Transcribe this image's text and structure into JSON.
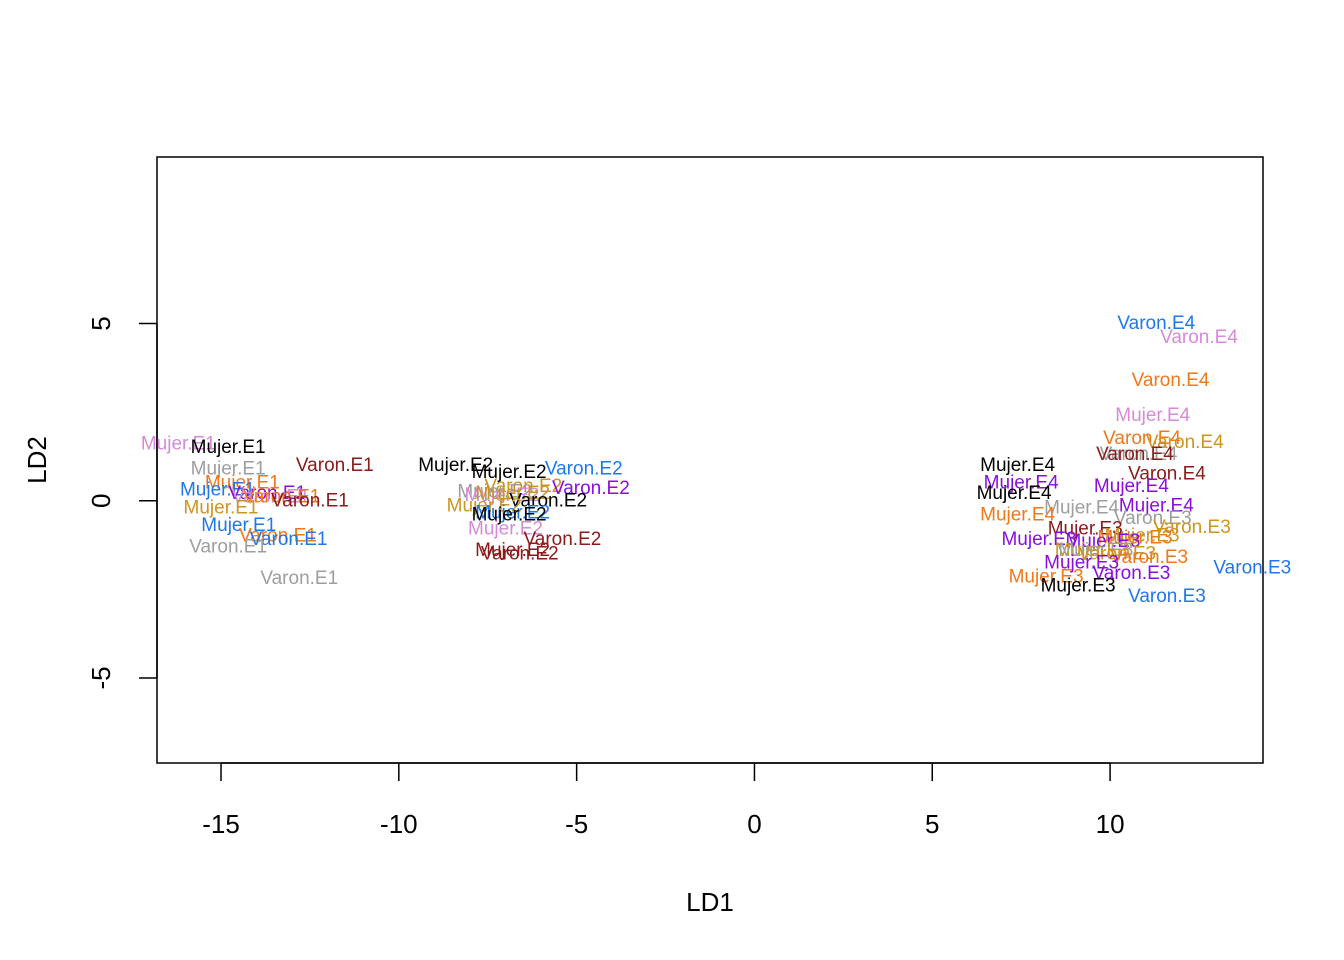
{
  "chart_data": {
    "type": "scatter",
    "title": "",
    "xlabel": "LD1",
    "ylabel": "LD2",
    "xlim": [
      -16.8,
      14.3
    ],
    "ylim": [
      -7.4,
      9.7
    ],
    "xticks": [
      -15,
      -10,
      -5,
      0,
      5,
      10
    ],
    "yticks": [
      -5,
      0,
      5
    ],
    "xtick_labels": [
      "-15",
      "-10",
      "-5",
      "0",
      "5",
      "10"
    ],
    "ytick_labels": [
      "-5",
      "0",
      "5"
    ],
    "grid": false,
    "colors": {
      "black": "#000000",
      "gray": "#9e9e9e",
      "red": "#8b1a1a",
      "blue": "#1f78e8",
      "orange": "#f07818",
      "purple": "#8a0ee0",
      "pink": "#d68ad8",
      "gold": "#cc9520"
    },
    "points": [
      {
        "label": "Mujer.E1",
        "x": -16.2,
        "y": 1.6,
        "color": "pink"
      },
      {
        "label": "Mujer.E1",
        "x": -14.8,
        "y": 1.5,
        "color": "black"
      },
      {
        "label": "Mujer.E1",
        "x": -14.8,
        "y": 0.9,
        "color": "gray"
      },
      {
        "label": "Varon.E1",
        "x": -11.8,
        "y": 1.0,
        "color": "red"
      },
      {
        "label": "Mujer.E1",
        "x": -14.4,
        "y": 0.5,
        "color": "orange"
      },
      {
        "label": "Mujer.E1",
        "x": -15.1,
        "y": 0.3,
        "color": "blue"
      },
      {
        "label": "Varon.E1",
        "x": -13.7,
        "y": 0.2,
        "color": "purple"
      },
      {
        "label": "Varon.E1",
        "x": -13.6,
        "y": 0.1,
        "color": "pink"
      },
      {
        "label": "Varon.E1",
        "x": -13.3,
        "y": 0.1,
        "color": "orange"
      },
      {
        "label": "Varon.E1",
        "x": -12.5,
        "y": 0.0,
        "color": "red"
      },
      {
        "label": "Mujer.E1",
        "x": -15.0,
        "y": -0.2,
        "color": "gold"
      },
      {
        "label": "Mujer.E1",
        "x": -14.5,
        "y": -0.7,
        "color": "blue"
      },
      {
        "label": "Varon.E1",
        "x": -13.4,
        "y": -1.0,
        "color": "orange"
      },
      {
        "label": "Varon.E1",
        "x": -13.1,
        "y": -1.1,
        "color": "blue"
      },
      {
        "label": "Varon.E1",
        "x": -14.8,
        "y": -1.3,
        "color": "gray"
      },
      {
        "label": "Varon.E1",
        "x": -12.8,
        "y": -2.2,
        "color": "gray"
      },
      {
        "label": "Mujer.E2",
        "x": -8.4,
        "y": 1.0,
        "color": "black"
      },
      {
        "label": "Mujer.E2",
        "x": -6.9,
        "y": 0.8,
        "color": "black"
      },
      {
        "label": "Varon.E2",
        "x": -4.8,
        "y": 0.9,
        "color": "blue"
      },
      {
        "label": "Varon.E2",
        "x": -6.5,
        "y": 0.4,
        "color": "gold"
      },
      {
        "label": "Varon.E2",
        "x": -4.6,
        "y": 0.35,
        "color": "purple"
      },
      {
        "label": "Mujer.E2",
        "x": -7.3,
        "y": 0.25,
        "color": "gray"
      },
      {
        "label": "Mujer.E2",
        "x": -7.1,
        "y": 0.15,
        "color": "pink"
      },
      {
        "label": "Mujer.E2",
        "x": -6.8,
        "y": 0.2,
        "color": "gold"
      },
      {
        "label": "Varon.E2",
        "x": -5.8,
        "y": 0.0,
        "color": "black"
      },
      {
        "label": "Mujer.E2",
        "x": -7.6,
        "y": -0.15,
        "color": "gold"
      },
      {
        "label": "Mujer.E2",
        "x": -6.8,
        "y": -0.35,
        "color": "blue"
      },
      {
        "label": "Mujer.E2",
        "x": -6.9,
        "y": -0.4,
        "color": "black"
      },
      {
        "label": "Mujer.E2",
        "x": -7.0,
        "y": -0.8,
        "color": "pink"
      },
      {
        "label": "Varon.E2",
        "x": -5.4,
        "y": -1.1,
        "color": "red"
      },
      {
        "label": "Mujer.E2",
        "x": -6.8,
        "y": -1.4,
        "color": "red"
      },
      {
        "label": "Varon.E2",
        "x": -6.6,
        "y": -1.5,
        "color": "red"
      },
      {
        "label": "Varon.E4",
        "x": 11.3,
        "y": 5.0,
        "color": "blue"
      },
      {
        "label": "Varon.E4",
        "x": 12.5,
        "y": 4.6,
        "color": "pink"
      },
      {
        "label": "Varon.E4",
        "x": 11.7,
        "y": 3.4,
        "color": "orange"
      },
      {
        "label": "Mujer.E4",
        "x": 11.2,
        "y": 2.4,
        "color": "pink"
      },
      {
        "label": "Varon.E4",
        "x": 10.9,
        "y": 1.75,
        "color": "orange"
      },
      {
        "label": "Varon.E4",
        "x": 12.1,
        "y": 1.65,
        "color": "gold"
      },
      {
        "label": "Varon.E4",
        "x": 10.8,
        "y": 1.3,
        "color": "gray"
      },
      {
        "label": "Varon.E4",
        "x": 10.7,
        "y": 1.3,
        "color": "red"
      },
      {
        "label": "Varon.E4",
        "x": 11.6,
        "y": 0.75,
        "color": "red"
      },
      {
        "label": "Mujer.E4",
        "x": 7.4,
        "y": 1.0,
        "color": "black"
      },
      {
        "label": "Mujer.E4",
        "x": 7.5,
        "y": 0.5,
        "color": "purple"
      },
      {
        "label": "Mujer.E4",
        "x": 10.6,
        "y": 0.4,
        "color": "purple"
      },
      {
        "label": "Mujer.E4",
        "x": 7.3,
        "y": 0.2,
        "color": "black"
      },
      {
        "label": "Mujer.E4",
        "x": 9.2,
        "y": -0.2,
        "color": "gray"
      },
      {
        "label": "Mujer.E4",
        "x": 11.3,
        "y": -0.15,
        "color": "purple"
      },
      {
        "label": "Mujer.E4",
        "x": 7.4,
        "y": -0.4,
        "color": "orange"
      },
      {
        "label": "Varon.E3",
        "x": 11.2,
        "y": -0.5,
        "color": "gray"
      },
      {
        "label": "Varon.E3",
        "x": 12.3,
        "y": -0.75,
        "color": "gold"
      },
      {
        "label": "Mujer.E3",
        "x": 9.3,
        "y": -0.8,
        "color": "red"
      },
      {
        "label": "Mujer.E3",
        "x": 10.7,
        "y": -1.05,
        "color": "orange"
      },
      {
        "label": "Mujer.E3",
        "x": 10.9,
        "y": -1.0,
        "color": "gold"
      },
      {
        "label": "Mujer.E3",
        "x": 9.8,
        "y": -1.15,
        "color": "purple"
      },
      {
        "label": "Mujer.E3",
        "x": 8.0,
        "y": -1.1,
        "color": "purple"
      },
      {
        "label": "Mujer.E3",
        "x": 9.5,
        "y": -1.4,
        "color": "gold"
      },
      {
        "label": "Mujer.E3",
        "x": 9.6,
        "y": -1.4,
        "color": "gray"
      },
      {
        "label": "Varon.E3",
        "x": 10.2,
        "y": -1.5,
        "color": "gold"
      },
      {
        "label": "Varon.E3",
        "x": 11.1,
        "y": -1.6,
        "color": "orange"
      },
      {
        "label": "Mujer.E3",
        "x": 9.2,
        "y": -1.75,
        "color": "purple"
      },
      {
        "label": "Varon.E3",
        "x": 10.6,
        "y": -2.05,
        "color": "purple"
      },
      {
        "label": "Varon.E3",
        "x": 14.0,
        "y": -1.9,
        "color": "blue"
      },
      {
        "label": "Mujer.E3",
        "x": 8.2,
        "y": -2.15,
        "color": "orange"
      },
      {
        "label": "Mujer.E3",
        "x": 9.1,
        "y": -2.4,
        "color": "black"
      },
      {
        "label": "Varon.E3",
        "x": 11.6,
        "y": -2.7,
        "color": "blue"
      }
    ]
  }
}
